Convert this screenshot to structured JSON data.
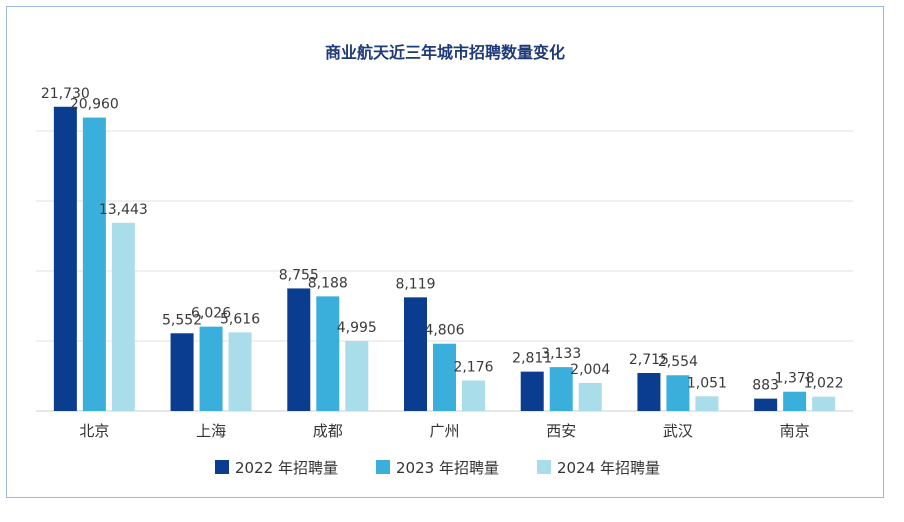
{
  "chart_data": {
    "type": "bar",
    "title": "商业航天近三年城市招聘数量变化",
    "categories": [
      "北京",
      "上海",
      "成都",
      "广州",
      "西安",
      "武汉",
      "南京"
    ],
    "series": [
      {
        "name": "2022 年招聘量",
        "color": "#0a3d8f",
        "values": [
          21730,
          5552,
          8755,
          8119,
          2811,
          2715,
          883
        ]
      },
      {
        "name": "2023 年招聘量",
        "color": "#3aafdc",
        "values": [
          20960,
          6026,
          8188,
          4806,
          3133,
          2554,
          1378
        ]
      },
      {
        "name": "2024 年招聘量",
        "color": "#a9dde9",
        "values": [
          13443,
          5616,
          4995,
          2176,
          2004,
          1051,
          1022
        ]
      }
    ],
    "ylim": [
      0,
      25000
    ],
    "gridlines": [
      5000,
      10000,
      15000,
      20000
    ],
    "legend": "bottom"
  }
}
